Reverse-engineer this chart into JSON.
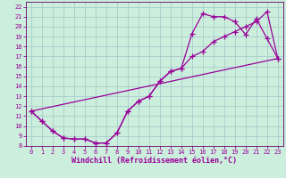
{
  "xlabel": "Windchill (Refroidissement éolien,°C)",
  "bg_color": "#cceedd",
  "grid_color": "#aacccc",
  "line_color": "#990099",
  "spine_color": "#660066",
  "xlim": [
    -0.5,
    23.5
  ],
  "ylim": [
    8,
    22.5
  ],
  "xticks": [
    0,
    1,
    2,
    3,
    4,
    5,
    6,
    7,
    8,
    9,
    10,
    11,
    12,
    13,
    14,
    15,
    16,
    17,
    18,
    19,
    20,
    21,
    22,
    23
  ],
  "yticks": [
    8,
    9,
    10,
    11,
    12,
    13,
    14,
    15,
    16,
    17,
    18,
    19,
    20,
    21,
    22
  ],
  "line1_x": [
    0,
    1,
    2,
    3,
    4,
    5,
    6,
    7,
    8,
    9,
    10,
    11,
    12,
    13,
    14,
    15,
    16,
    17,
    18,
    19,
    20,
    21,
    22,
    23
  ],
  "line1_y": [
    11.5,
    10.5,
    9.5,
    8.8,
    8.7,
    8.7,
    8.3,
    8.3,
    9.3,
    11.5,
    12.5,
    13.0,
    14.5,
    15.5,
    15.8,
    17.0,
    17.5,
    18.5,
    19.0,
    19.5,
    20.0,
    20.5,
    21.5,
    16.8
  ],
  "line2_x": [
    0,
    1,
    2,
    3,
    4,
    5,
    6,
    7,
    8,
    9,
    10,
    11,
    12,
    13,
    14,
    15,
    16,
    17,
    18,
    19,
    20,
    21,
    22,
    23
  ],
  "line2_y": [
    11.5,
    10.5,
    9.5,
    8.8,
    8.7,
    8.7,
    8.3,
    8.3,
    9.3,
    11.5,
    12.5,
    13.0,
    14.5,
    15.5,
    15.8,
    19.3,
    21.3,
    21.0,
    21.0,
    20.5,
    19.2,
    20.8,
    18.8,
    16.8
  ],
  "line3_x": [
    0,
    23
  ],
  "line3_y": [
    11.5,
    16.8
  ],
  "marker": "+",
  "marker_size": 4,
  "linewidth": 0.9,
  "tick_fontsize": 5,
  "label_fontsize": 6
}
